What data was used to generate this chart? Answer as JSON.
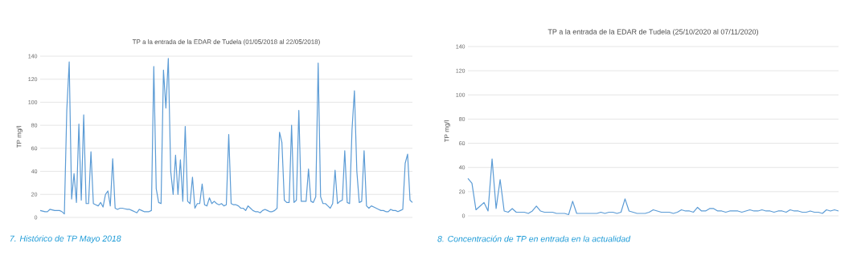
{
  "chart_data": [
    {
      "type": "line",
      "title": "TP a la entrada de la EDAR de Tudela (01/05/2018 al 22/05/2018)",
      "ylabel": "TP mg/l",
      "categories": [
        null,
        null,
        null,
        null,
        null,
        null,
        null,
        null,
        null,
        null,
        null,
        null,
        null,
        null,
        null,
        null,
        null,
        null,
        null,
        null,
        null,
        null,
        null,
        null,
        null,
        null,
        null,
        null,
        null,
        null,
        null,
        null,
        null,
        null,
        null,
        null,
        null,
        null,
        null,
        null,
        null,
        null,
        null,
        null,
        null,
        null,
        null,
        null,
        null,
        null,
        null,
        null,
        null,
        null,
        null,
        null,
        null,
        null,
        null,
        null,
        null,
        null,
        null,
        null,
        null,
        null,
        null,
        null,
        null,
        null,
        null,
        null,
        null,
        null,
        null,
        null,
        null,
        null,
        null,
        null,
        null,
        null,
        null,
        null,
        null,
        null,
        null,
        null,
        null,
        null,
        null,
        null,
        null,
        null,
        null,
        null,
        null,
        null,
        null,
        null,
        null,
        null,
        null,
        null,
        null,
        null,
        null,
        null,
        null,
        null,
        null,
        null,
        null,
        null,
        null,
        null,
        null,
        null,
        null,
        null,
        null,
        null,
        null,
        null,
        null,
        null,
        null,
        null,
        null,
        null,
        null,
        null,
        null,
        null,
        null,
        null,
        null,
        null,
        null,
        null,
        null,
        null,
        null,
        null,
        null,
        null,
        null,
        null,
        null,
        null,
        null,
        null,
        null,
        null,
        null
      ],
      "series": [
        {
          "color": "#5b9bd5",
          "values": [
            6,
            5.5,
            5,
            5,
            7,
            6.5,
            6,
            6,
            6,
            5,
            3,
            93,
            135,
            16,
            38,
            13,
            81,
            15,
            89,
            12,
            12,
            57,
            12,
            11,
            10,
            13,
            9,
            20,
            23,
            10,
            51,
            8,
            7,
            8,
            8,
            7.5,
            7,
            7,
            6,
            5,
            4,
            7,
            6,
            5,
            5,
            5,
            6,
            131,
            25,
            13,
            12,
            128,
            95,
            138,
            40,
            20,
            54,
            20,
            50,
            14,
            79,
            14,
            12,
            35,
            8,
            12,
            12,
            29,
            11,
            10,
            17,
            12,
            14,
            12,
            11,
            12,
            10,
            11,
            72,
            12,
            11,
            11,
            10,
            8,
            8,
            6,
            10,
            8,
            6,
            5,
            5,
            4,
            6,
            7,
            6,
            5,
            5,
            6,
            8,
            74,
            65,
            15,
            13,
            13,
            80,
            13,
            15,
            93,
            14,
            14,
            14,
            42,
            14,
            13,
            18,
            134,
            18,
            12,
            12,
            10,
            8,
            12,
            41,
            12,
            14,
            15,
            58,
            13,
            12,
            76,
            110,
            40,
            13,
            14,
            58,
            10,
            8,
            10,
            9,
            8,
            7,
            6,
            6,
            5,
            5,
            7,
            6,
            6,
            5,
            6,
            7,
            47,
            55,
            15,
            13
          ]
        }
      ],
      "ylim": [
        0,
        140
      ],
      "yticks": [
        0,
        20,
        40,
        60,
        80,
        100,
        120,
        140
      ],
      "grid": "y",
      "annotations": [
        "7. Histórico de TP Mayo 2018"
      ]
    },
    {
      "type": "line",
      "title": "TP a la entrada de la EDAR de Tudela (25/10/2020 al 07/11/2020)",
      "ylabel": "TP mg/l",
      "categories": [
        null,
        null,
        null,
        null,
        null,
        null,
        null,
        null,
        null,
        null,
        null,
        null,
        null,
        null,
        null,
        null,
        null,
        null,
        null,
        null,
        null,
        null,
        null,
        null,
        null,
        null,
        null,
        null,
        null,
        null,
        null,
        null,
        null,
        null,
        null,
        null,
        null,
        null,
        null,
        null,
        null,
        null,
        null,
        null,
        null,
        null,
        null,
        null,
        null,
        null,
        null,
        null,
        null,
        null,
        null,
        null,
        null,
        null,
        null,
        null,
        null,
        null,
        null,
        null,
        null,
        null,
        null,
        null,
        null,
        null,
        null,
        null,
        null,
        null,
        null,
        null,
        null,
        null,
        null,
        null,
        null,
        null,
        null,
        null,
        null,
        null,
        null,
        null,
        null,
        null,
        null,
        null,
        null
      ],
      "series": [
        {
          "color": "#5b9bd5",
          "values": [
            31,
            27,
            5,
            8,
            11,
            4,
            47,
            6,
            30,
            4,
            3,
            6,
            3,
            3,
            3,
            2,
            4,
            8,
            4,
            3,
            3,
            3,
            2,
            2,
            2,
            1,
            12,
            2,
            2,
            2,
            2,
            2,
            2,
            3,
            2,
            3,
            3,
            2,
            3,
            14,
            4,
            3,
            2,
            2,
            2,
            3,
            5,
            4,
            3,
            3,
            3,
            2,
            3,
            5,
            4,
            4,
            3,
            7,
            4,
            4,
            6,
            6,
            4,
            4,
            3,
            4,
            4,
            4,
            3,
            4,
            5,
            4,
            4,
            5,
            4,
            4,
            3,
            4,
            4,
            3,
            5,
            4,
            4,
            3,
            3,
            4,
            3,
            3,
            2,
            5,
            4,
            5,
            4
          ]
        }
      ],
      "ylim": [
        0,
        140
      ],
      "yticks": [
        0,
        20,
        40,
        60,
        80,
        100,
        120,
        140
      ],
      "grid": "y",
      "annotations": [
        "8. Concentración de TP en entrada en la actualidad"
      ]
    }
  ]
}
